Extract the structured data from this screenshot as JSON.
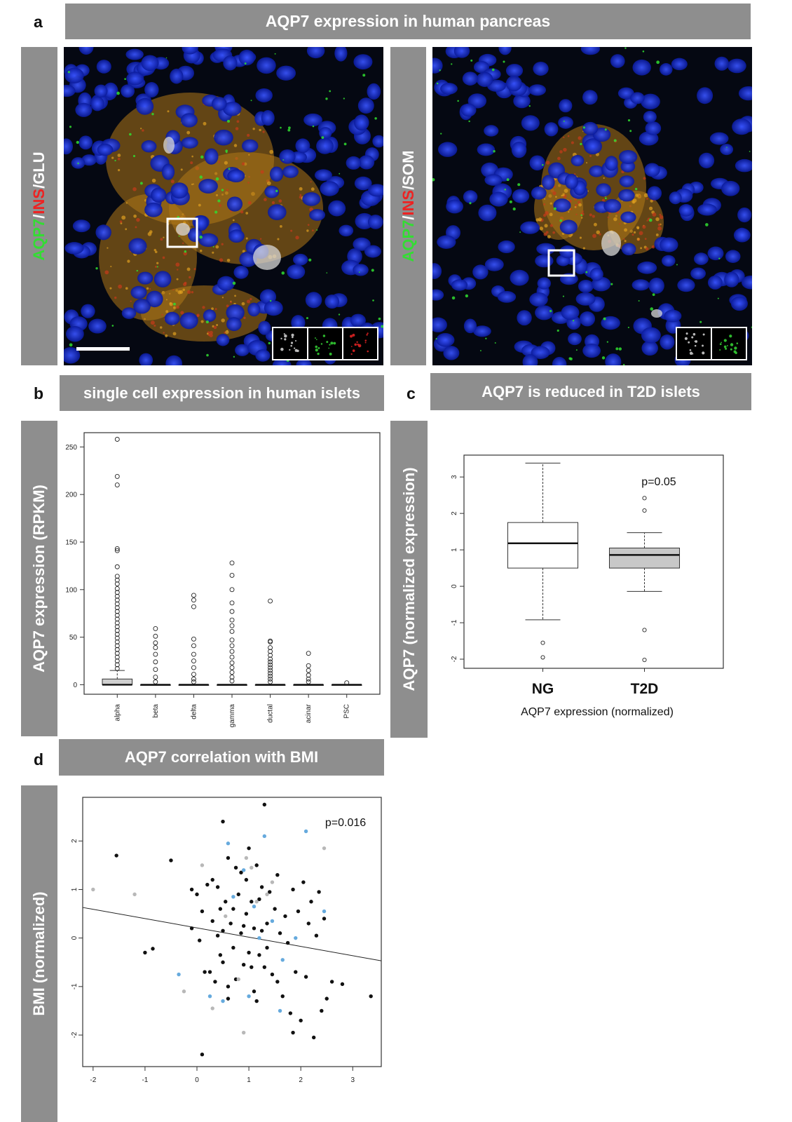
{
  "panel_a": {
    "letter": "a",
    "title": "AQP7 expression in human pancreas",
    "left_label": {
      "parts": [
        {
          "text": "AQP7",
          "color": "#33dd33"
        },
        {
          "text": "/",
          "color": "#ffffff"
        },
        {
          "text": "INS",
          "color": "#ee2222"
        },
        {
          "text": "/GLU",
          "color": "#ffffff"
        }
      ]
    },
    "right_label": {
      "parts": [
        {
          "text": "AQP7",
          "color": "#33dd33"
        },
        {
          "text": "/",
          "color": "#ffffff"
        },
        {
          "text": "INS",
          "color": "#ee2222"
        },
        {
          "text": "/SOM",
          "color": "#ffffff"
        }
      ]
    }
  },
  "panel_b": {
    "letter": "b",
    "title": "single cell expression in human islets",
    "ylabel": "AQP7 expression (RPKM)"
  },
  "panel_c": {
    "letter": "c",
    "title": "AQP7 is reduced in T2D islets",
    "ylabel": "AQP7 (normalized expression)",
    "xlabel": "AQP7 expression (normalized)",
    "pvalue": "p=0.05"
  },
  "panel_d": {
    "letter": "d",
    "title": "AQP7 correlation with BMI",
    "ylabel": "BMI (normalized)",
    "pvalue": "p=0.016"
  },
  "chart_data": [
    {
      "id": "b",
      "type": "box",
      "ylabel": "AQP7 expression (RPKM)",
      "categories": [
        "alpha",
        "beta",
        "delta",
        "gamma",
        "ductal",
        "acinar",
        "PSC"
      ],
      "ylim": [
        -10,
        265
      ],
      "yticks": [
        0,
        50,
        100,
        150,
        200,
        250
      ],
      "boxes": [
        {
          "q1": 0,
          "median": 0,
          "q3": 6,
          "whisker_low": 0,
          "whisker_high": 15,
          "fill": "#d0d0d0",
          "outliers": [
            258,
            219,
            210,
            143,
            141,
            124,
            114,
            110,
            106,
            101,
            97,
            93,
            89,
            85,
            81,
            77,
            73,
            69,
            65,
            61,
            57,
            53,
            49,
            45,
            41,
            37,
            33,
            29,
            25,
            21,
            17
          ]
        },
        {
          "q1": 0,
          "median": 0,
          "q3": 0,
          "whisker_low": 0,
          "whisker_high": 0,
          "fill": "#ffffff",
          "outliers": [
            59,
            51,
            44,
            39,
            32,
            24,
            16,
            8,
            3
          ]
        },
        {
          "q1": 0,
          "median": 0,
          "q3": 0,
          "whisker_low": 0,
          "whisker_high": 0,
          "fill": "#ffffff",
          "outliers": [
            94,
            89,
            82,
            48,
            41,
            32,
            25,
            18,
            11,
            6,
            3
          ]
        },
        {
          "q1": 0,
          "median": 0,
          "q3": 0,
          "whisker_low": 0,
          "whisker_high": 0,
          "fill": "#ffffff",
          "outliers": [
            128,
            115,
            100,
            86,
            77,
            68,
            62,
            56,
            47,
            41,
            35,
            29,
            23,
            18,
            13,
            8,
            4
          ]
        },
        {
          "q1": 0,
          "median": 0,
          "q3": 0,
          "whisker_low": 0,
          "whisker_high": 0,
          "fill": "#ffffff",
          "outliers": [
            88,
            46,
            45,
            39,
            35,
            31,
            27,
            24,
            21,
            18,
            15,
            12,
            9,
            6,
            3
          ]
        },
        {
          "q1": 0,
          "median": 0,
          "q3": 0,
          "whisker_low": 0,
          "whisker_high": 0,
          "fill": "#ffffff",
          "outliers": [
            33,
            20,
            15,
            10,
            6,
            3
          ]
        },
        {
          "q1": 0,
          "median": 0,
          "q3": 0,
          "whisker_low": 0,
          "whisker_high": 0,
          "fill": "#ffffff",
          "outliers": [
            2
          ]
        }
      ]
    },
    {
      "id": "c",
      "type": "box",
      "ylabel": "AQP7 (normalized expression)",
      "xlabel": "AQP7 expression (normalized)",
      "categories": [
        "NG",
        "T2D"
      ],
      "ylim": [
        -2.25,
        3.6
      ],
      "yticks": [
        -2,
        -1,
        0,
        1,
        2,
        3
      ],
      "annotation": "p=0.05",
      "boxes": [
        {
          "q1": 0.5,
          "median": 1.18,
          "q3": 1.75,
          "whisker_low": -0.92,
          "whisker_high": 3.38,
          "fill": "#ffffff",
          "outliers": [
            -1.55,
            -1.95
          ]
        },
        {
          "q1": 0.5,
          "median": 0.86,
          "q3": 1.05,
          "whisker_low": -0.14,
          "whisker_high": 1.47,
          "fill": "#c8c8c8",
          "outliers": [
            2.42,
            2.08,
            -1.2,
            -2.02
          ]
        }
      ]
    },
    {
      "id": "d",
      "type": "scatter",
      "ylabel": "BMI (normalized)",
      "xlim": [
        -2.2,
        3.55
      ],
      "ylim": [
        -2.65,
        2.9
      ],
      "xticks": [
        -2,
        -1,
        0,
        1,
        2,
        3
      ],
      "yticks": [
        -2,
        -1,
        0,
        1,
        2
      ],
      "annotation": "p=0.016",
      "fit_line": {
        "x": [
          -2.2,
          3.55
        ],
        "y": [
          0.63,
          -0.47
        ]
      },
      "series": [
        {
          "color": "#111111",
          "points": [
            [
              -1.55,
              1.7
            ],
            [
              -1.0,
              -0.3
            ],
            [
              -0.85,
              -0.22
            ],
            [
              -0.5,
              1.6
            ],
            [
              -0.1,
              1.0
            ],
            [
              -0.1,
              0.2
            ],
            [
              0.0,
              0.9
            ],
            [
              0.05,
              -0.05
            ],
            [
              0.1,
              0.55
            ],
            [
              0.15,
              -0.7
            ],
            [
              0.2,
              1.1
            ],
            [
              0.25,
              -0.7
            ],
            [
              0.3,
              1.2
            ],
            [
              0.3,
              0.35
            ],
            [
              0.35,
              -0.9
            ],
            [
              0.4,
              1.05
            ],
            [
              0.4,
              0.05
            ],
            [
              0.45,
              0.6
            ],
            [
              0.5,
              2.4
            ],
            [
              0.5,
              -0.5
            ],
            [
              0.5,
              0.15
            ],
            [
              0.55,
              0.75
            ],
            [
              0.6,
              1.65
            ],
            [
              0.6,
              -1.0
            ],
            [
              0.65,
              0.3
            ],
            [
              0.7,
              0.6
            ],
            [
              0.7,
              -0.2
            ],
            [
              0.75,
              1.45
            ],
            [
              0.75,
              -0.85
            ],
            [
              0.8,
              0.9
            ],
            [
              0.85,
              0.1
            ],
            [
              0.85,
              1.35
            ],
            [
              0.9,
              -0.55
            ],
            [
              0.95,
              1.2
            ],
            [
              0.95,
              0.5
            ],
            [
              1.0,
              -0.3
            ],
            [
              1.0,
              1.85
            ],
            [
              1.05,
              0.75
            ],
            [
              1.05,
              -0.6
            ],
            [
              1.1,
              0.2
            ],
            [
              1.1,
              -1.1
            ],
            [
              1.15,
              1.5
            ],
            [
              1.2,
              0.8
            ],
            [
              1.2,
              -0.35
            ],
            [
              1.25,
              1.05
            ],
            [
              1.3,
              -0.6
            ],
            [
              1.3,
              2.75
            ],
            [
              1.35,
              0.3
            ],
            [
              1.35,
              -0.2
            ],
            [
              1.4,
              0.95
            ],
            [
              1.45,
              -0.75
            ],
            [
              1.5,
              0.6
            ],
            [
              1.55,
              1.3
            ],
            [
              1.55,
              -0.9
            ],
            [
              1.6,
              0.1
            ],
            [
              1.65,
              -1.2
            ],
            [
              1.7,
              0.45
            ],
            [
              1.75,
              -0.1
            ],
            [
              1.8,
              -1.55
            ],
            [
              1.85,
              1.0
            ],
            [
              1.9,
              -0.7
            ],
            [
              1.95,
              0.55
            ],
            [
              2.0,
              -1.7
            ],
            [
              2.05,
              1.15
            ],
            [
              2.1,
              -0.8
            ],
            [
              2.15,
              0.3
            ],
            [
              2.2,
              0.75
            ],
            [
              2.25,
              -2.05
            ],
            [
              2.3,
              0.05
            ],
            [
              2.35,
              0.95
            ],
            [
              2.4,
              -1.5
            ],
            [
              2.45,
              0.4
            ],
            [
              2.5,
              -1.25
            ],
            [
              2.6,
              -0.9
            ],
            [
              2.8,
              -0.95
            ],
            [
              3.35,
              -1.2
            ],
            [
              0.1,
              -2.4
            ],
            [
              0.6,
              -1.25
            ],
            [
              1.15,
              -1.3
            ],
            [
              1.85,
              -1.95
            ],
            [
              0.9,
              0.25
            ],
            [
              1.25,
              0.15
            ],
            [
              0.45,
              -0.35
            ]
          ]
        },
        {
          "color": "#66aadd",
          "points": [
            [
              -0.35,
              -0.75
            ],
            [
              0.25,
              -1.2
            ],
            [
              0.5,
              -1.3
            ],
            [
              0.6,
              1.95
            ],
            [
              0.9,
              1.4
            ],
            [
              1.0,
              -1.2
            ],
            [
              1.1,
              0.65
            ],
            [
              1.3,
              2.1
            ],
            [
              1.45,
              0.35
            ],
            [
              1.6,
              -1.5
            ],
            [
              1.65,
              -0.45
            ],
            [
              1.9,
              0.0
            ],
            [
              2.1,
              2.2
            ],
            [
              2.45,
              0.55
            ],
            [
              0.7,
              0.85
            ],
            [
              1.2,
              0.0
            ]
          ]
        },
        {
          "color": "#b8b8b8",
          "points": [
            [
              -2.0,
              1.0
            ],
            [
              -1.2,
              0.9
            ],
            [
              -0.25,
              -1.1
            ],
            [
              0.1,
              1.5
            ],
            [
              0.3,
              -1.45
            ],
            [
              0.55,
              0.45
            ],
            [
              0.9,
              -1.95
            ],
            [
              0.95,
              1.65
            ],
            [
              1.05,
              1.45
            ],
            [
              1.35,
              0.9
            ],
            [
              1.45,
              1.15
            ],
            [
              2.45,
              1.85
            ],
            [
              0.8,
              -0.85
            ],
            [
              1.15,
              0.75
            ]
          ]
        }
      ]
    }
  ]
}
